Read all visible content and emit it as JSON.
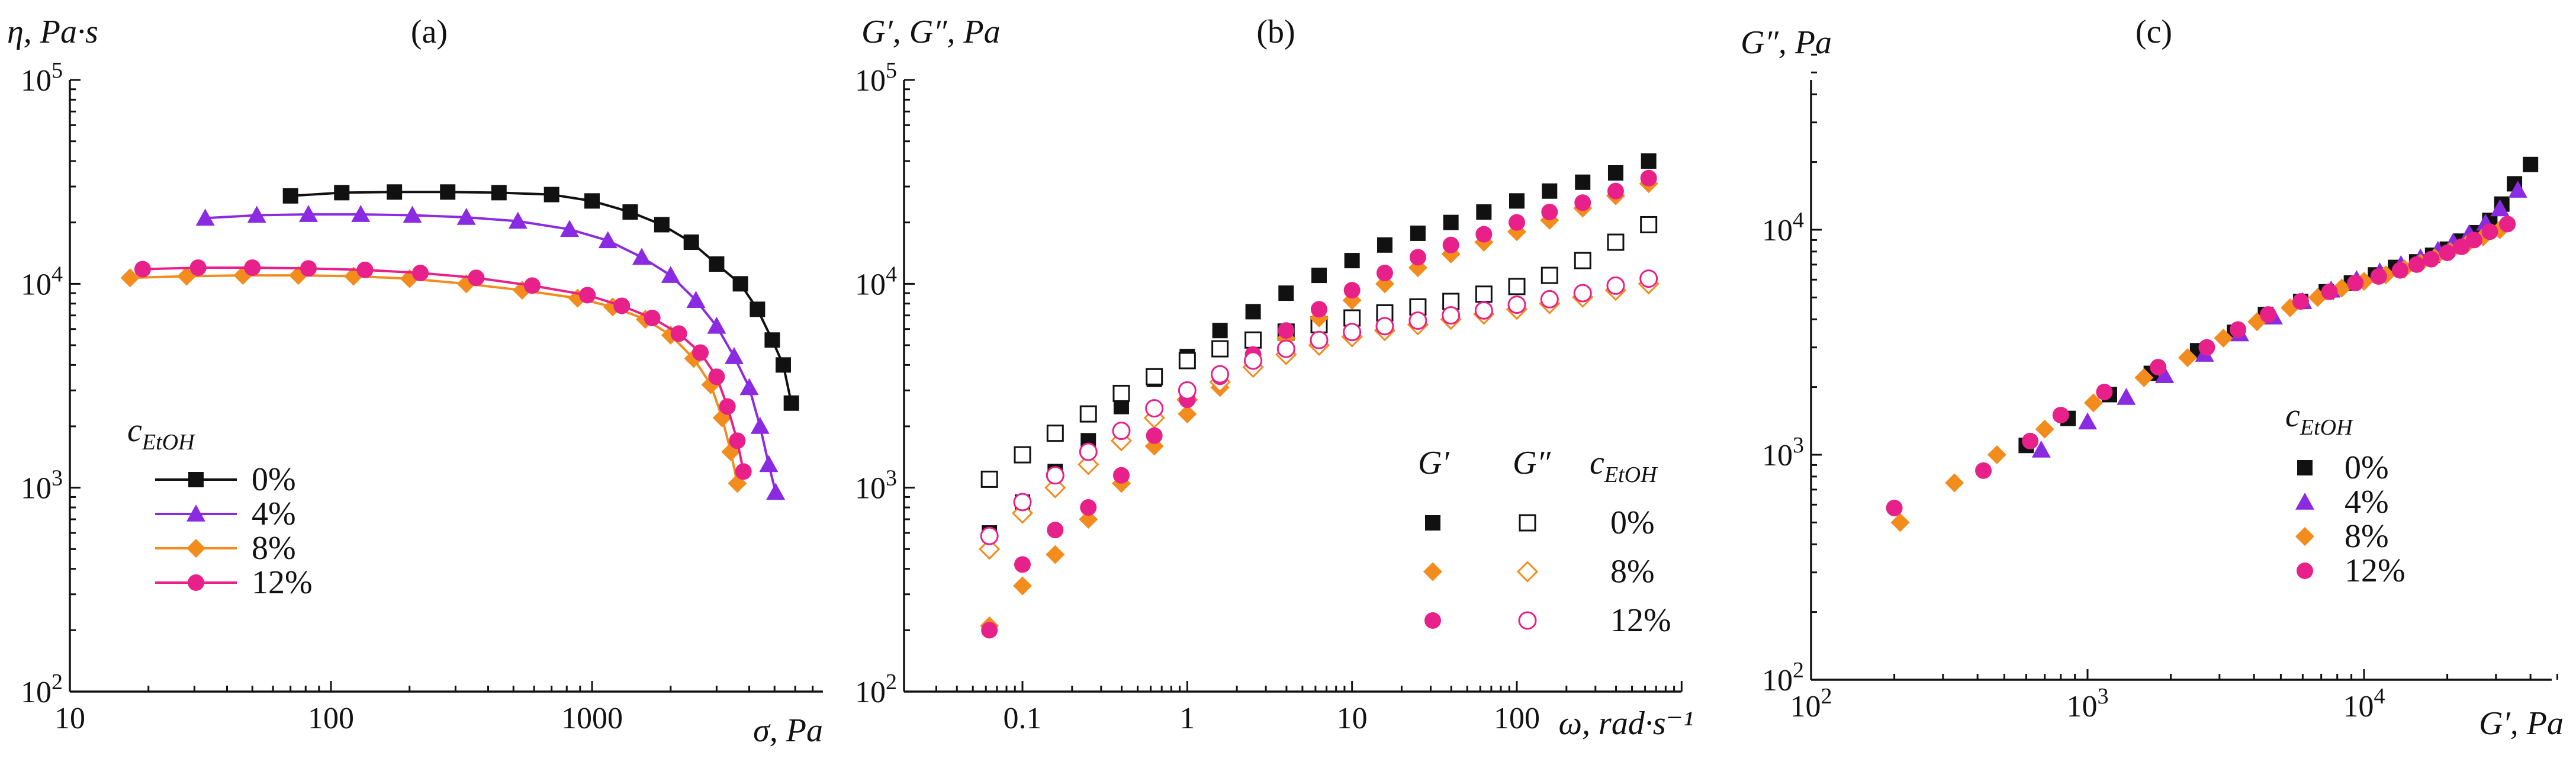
{
  "chart_data": [
    {
      "type": "line",
      "panel_label": "(a)",
      "y_label": "η, Pa·s",
      "x_label": "σ, Pa",
      "x_scale": "log",
      "y_scale": "log",
      "xlim": [
        10,
        7000
      ],
      "ylim": [
        100,
        100000
      ],
      "x_ticks": [
        10,
        100,
        1000
      ],
      "x_tick_labels": [
        "10",
        "100",
        "1000"
      ],
      "y_ticks": [
        100,
        1000,
        10000,
        100000
      ],
      "y_tick_labels": [
        [
          "10",
          "2"
        ],
        [
          "10",
          "3"
        ],
        [
          "10",
          "4"
        ],
        [
          "10",
          "5"
        ]
      ],
      "legend_title": [
        "c",
        "EtOH"
      ],
      "legend_position": "lower-left",
      "series": [
        {
          "name": "0%",
          "color": "#111111",
          "marker": "square",
          "filled": true,
          "x": [
            70,
            110,
            175,
            280,
            440,
            700,
            1000,
            1400,
            1850,
            2400,
            3000,
            3700,
            4300,
            4900,
            5400,
            5800,
            6100
          ],
          "y": [
            27000,
            28000,
            28200,
            28200,
            28000,
            27400,
            25500,
            22500,
            19500,
            16000,
            12500,
            10000,
            7500,
            5300,
            4000,
            2600,
            null
          ]
        },
        {
          "name": "4%",
          "color": "#8a2be2",
          "marker": "triangle",
          "filled": true,
          "x": [
            33,
            52,
            82,
            130,
            205,
            330,
            520,
            820,
            1150,
            1550,
            2000,
            2500,
            3000,
            3500,
            4000,
            4400,
            4750,
            5050
          ],
          "y": [
            21000,
            21700,
            21900,
            21900,
            21700,
            21200,
            20300,
            18500,
            16300,
            13500,
            11000,
            8300,
            6200,
            4400,
            3100,
            2000,
            1300,
            950
          ]
        },
        {
          "name": "8%",
          "color": "#f28c1c",
          "marker": "diamond",
          "filled": true,
          "x": [
            17,
            28,
            46,
            75,
            122,
            200,
            330,
            540,
            880,
            1200,
            1600,
            2000,
            2450,
            2850,
            3150,
            3400,
            3600
          ],
          "y": [
            10700,
            10900,
            11000,
            11000,
            10900,
            10600,
            10000,
            9300,
            8500,
            7700,
            6700,
            5600,
            4300,
            3200,
            2200,
            1500,
            1050
          ]
        },
        {
          "name": "12%",
          "color": "#e8208a",
          "marker": "circle",
          "filled": true,
          "x": [
            19,
            31,
            50,
            82,
            135,
            220,
            360,
            590,
            960,
            1300,
            1700,
            2150,
            2600,
            3000,
            3300,
            3600,
            3800
          ],
          "y": [
            11800,
            12000,
            12000,
            11900,
            11700,
            11300,
            10700,
            9800,
            8800,
            7800,
            6800,
            5700,
            4600,
            3500,
            2500,
            1700,
            1200
          ]
        }
      ]
    },
    {
      "type": "scatter",
      "panel_label": "(b)",
      "y_label": "G′, G″, Pa",
      "x_label": "ω, rad·s⁻¹",
      "x_scale": "log",
      "y_scale": "log",
      "xlim": [
        0.03,
        1000
      ],
      "ylim": [
        100,
        100000
      ],
      "x_ticks": [
        0.1,
        1,
        10,
        100
      ],
      "x_tick_labels": [
        "0.1",
        "1",
        "10",
        "100"
      ],
      "y_ticks": [
        100,
        1000,
        10000,
        100000
      ],
      "y_tick_labels": [
        [
          "10",
          "2"
        ],
        [
          "10",
          "3"
        ],
        [
          "10",
          "4"
        ],
        [
          "10",
          "5"
        ]
      ],
      "legend_headers": [
        "G′",
        "G″",
        "c",
        "EtOH"
      ],
      "legend_position": "lower-right",
      "omega": [
        0.063,
        0.1,
        0.158,
        0.251,
        0.398,
        0.631,
        1,
        1.58,
        2.51,
        3.98,
        6.31,
        10,
        15.8,
        25.1,
        39.8,
        63.1,
        100,
        158,
        251,
        398,
        631
      ],
      "series": [
        {
          "name": "0%",
          "color": "#111111",
          "marker": "square",
          "G_prime": [
            600,
            850,
            1200,
            1700,
            2500,
            3400,
            4400,
            5900,
            7300,
            9000,
            11000,
            13000,
            15500,
            17700,
            20000,
            22500,
            25500,
            28500,
            31500,
            35000,
            40000
          ],
          "G_double": [
            1100,
            1450,
            1850,
            2300,
            2900,
            3500,
            4200,
            4800,
            5300,
            5800,
            6300,
            6800,
            7200,
            7700,
            8200,
            8900,
            9700,
            11000,
            13000,
            16000,
            19500
          ]
        },
        {
          "name": "8%",
          "color": "#f28c1c",
          "marker": "diamond",
          "G_prime": [
            210,
            330,
            470,
            700,
            1050,
            1600,
            2300,
            3100,
            4100,
            5400,
            6800,
            8300,
            10000,
            12000,
            14000,
            16000,
            18000,
            20500,
            23500,
            27000,
            31000
          ],
          "G_double": [
            500,
            750,
            1000,
            1300,
            1700,
            2200,
            2700,
            3300,
            3900,
            4500,
            5000,
            5500,
            5900,
            6300,
            6700,
            7100,
            7500,
            8000,
            8600,
            9300,
            10000
          ]
        },
        {
          "name": "12%",
          "color": "#e8208a",
          "marker": "circle",
          "G_prime": [
            200,
            420,
            620,
            800,
            1150,
            1800,
            2700,
            3500,
            4500,
            5900,
            7500,
            9300,
            11300,
            13500,
            15500,
            17500,
            20000,
            22500,
            25000,
            28500,
            33000
          ],
          "G_double": [
            580,
            850,
            1150,
            1500,
            1900,
            2450,
            3000,
            3600,
            4200,
            4800,
            5300,
            5800,
            6200,
            6600,
            7000,
            7400,
            7900,
            8400,
            9000,
            9800,
            10600
          ]
        }
      ]
    },
    {
      "type": "scatter",
      "panel_label": "(c)",
      "y_label": "G″, Pa",
      "x_label": "G′, Pa",
      "x_scale": "log",
      "y_scale": "log",
      "xlim": [
        100,
        60000
      ],
      "ylim": [
        100,
        60000
      ],
      "x_ticks": [
        100,
        1000,
        10000
      ],
      "x_tick_labels": [
        [
          "10",
          "2"
        ],
        [
          "10",
          "3"
        ],
        [
          "10",
          "4"
        ]
      ],
      "y_ticks": [
        100,
        1000,
        10000
      ],
      "y_tick_labels": [
        [
          "10",
          "2"
        ],
        [
          "10",
          "3"
        ],
        [
          "10",
          "4"
        ]
      ],
      "legend_title": [
        "c",
        "EtOH"
      ],
      "legend_position": "lower-right",
      "series": [
        {
          "name": "0%",
          "color": "#111111",
          "marker": "square",
          "x": [
            600,
            850,
            1200,
            1700,
            2500,
            3400,
            4400,
            5900,
            7300,
            9000,
            11000,
            13000,
            15500,
            17700,
            20000,
            22500,
            25500,
            28500,
            31500,
            35000,
            40000
          ],
          "y": [
            1100,
            1450,
            1850,
            2300,
            2900,
            3500,
            4200,
            4800,
            5300,
            5800,
            6300,
            6800,
            7200,
            7700,
            8200,
            8900,
            9700,
            11000,
            13000,
            16000,
            19500
          ]
        },
        {
          "name": "4%",
          "color": "#8a2be2",
          "marker": "triangle",
          "x": [
            680,
            1000,
            1380,
            1900,
            2650,
            3550,
            4700,
            6000,
            7600,
            9400,
            11400,
            13600,
            16000,
            18500,
            21000,
            24000,
            27500,
            31000,
            36000
          ],
          "y": [
            1050,
            1400,
            1800,
            2250,
            2800,
            3450,
            4100,
            4800,
            5400,
            6000,
            6500,
            7000,
            7500,
            8100,
            8800,
            9600,
            10700,
            12400,
            15000
          ]
        },
        {
          "name": "8%",
          "color": "#f28c1c",
          "marker": "diamond",
          "x": [
            210,
            330,
            470,
            700,
            1050,
            1600,
            2300,
            3100,
            4100,
            5400,
            6800,
            8300,
            10000,
            12000,
            14000,
            16000,
            18000,
            20500,
            23500,
            27000,
            31000
          ],
          "y": [
            500,
            750,
            1000,
            1300,
            1700,
            2200,
            2700,
            3300,
            3900,
            4500,
            5000,
            5500,
            5900,
            6300,
            6700,
            7100,
            7500,
            8000,
            8600,
            9300,
            10000
          ]
        },
        {
          "name": "12%",
          "color": "#e8208a",
          "marker": "circle",
          "x": [
            200,
            420,
            620,
            800,
            1150,
            1800,
            2700,
            3500,
            4500,
            5900,
            7500,
            9300,
            11300,
            13500,
            15500,
            17500,
            20000,
            22500,
            25000,
            28500,
            33000
          ],
          "y": [
            580,
            850,
            1150,
            1500,
            1900,
            2450,
            3000,
            3600,
            4200,
            4800,
            5300,
            5800,
            6200,
            6600,
            7000,
            7400,
            7900,
            8400,
            9000,
            9800,
            10600
          ]
        }
      ]
    }
  ]
}
